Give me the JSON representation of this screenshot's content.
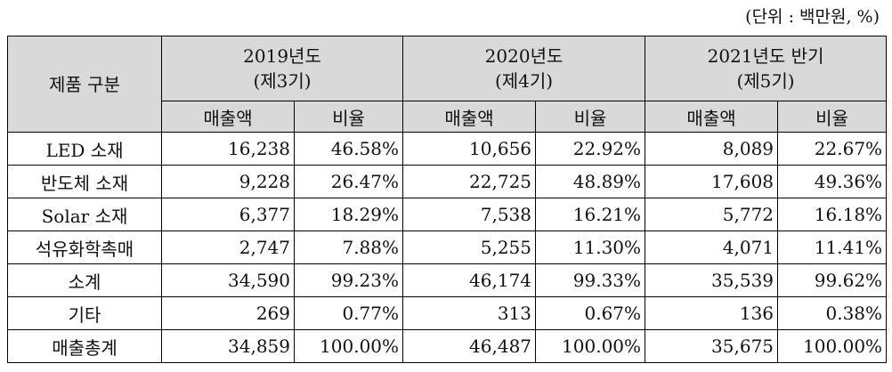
{
  "unit_note": "(단위 : 백만원, %)",
  "header": {
    "category": "제품 구분",
    "periods": [
      {
        "year": "2019년도",
        "term": "(제3기)"
      },
      {
        "year": "2020년도",
        "term": "(제4기)"
      },
      {
        "year": "2021년도 반기",
        "term": "(제5기)"
      }
    ],
    "sales_label": "매출액",
    "ratio_label": "비율"
  },
  "rows": [
    {
      "label": "LED 소재",
      "v": [
        "16,238",
        "46.58%",
        "10,656",
        "22.92%",
        "8,089",
        "22.67%"
      ]
    },
    {
      "label": "반도체 소재",
      "v": [
        "9,228",
        "26.47%",
        "22,725",
        "48.89%",
        "17,608",
        "49.36%"
      ]
    },
    {
      "label": "Solar 소재",
      "v": [
        "6,377",
        "18.29%",
        "7,538",
        "16.21%",
        "5,772",
        "16.18%"
      ]
    },
    {
      "label": "석유화학촉매",
      "v": [
        "2,747",
        "7.88%",
        "5,255",
        "11.30%",
        "4,071",
        "11.41%"
      ]
    },
    {
      "label": "소계",
      "v": [
        "34,590",
        "99.23%",
        "46,174",
        "99.33%",
        "35,539",
        "99.62%"
      ]
    },
    {
      "label": "기타",
      "v": [
        "269",
        "0.77%",
        "313",
        "0.67%",
        "136",
        "0.38%"
      ]
    },
    {
      "label": "매출총계",
      "v": [
        "34,859",
        "100.00%",
        "46,487",
        "100.00%",
        "35,675",
        "100.00%"
      ]
    }
  ]
}
